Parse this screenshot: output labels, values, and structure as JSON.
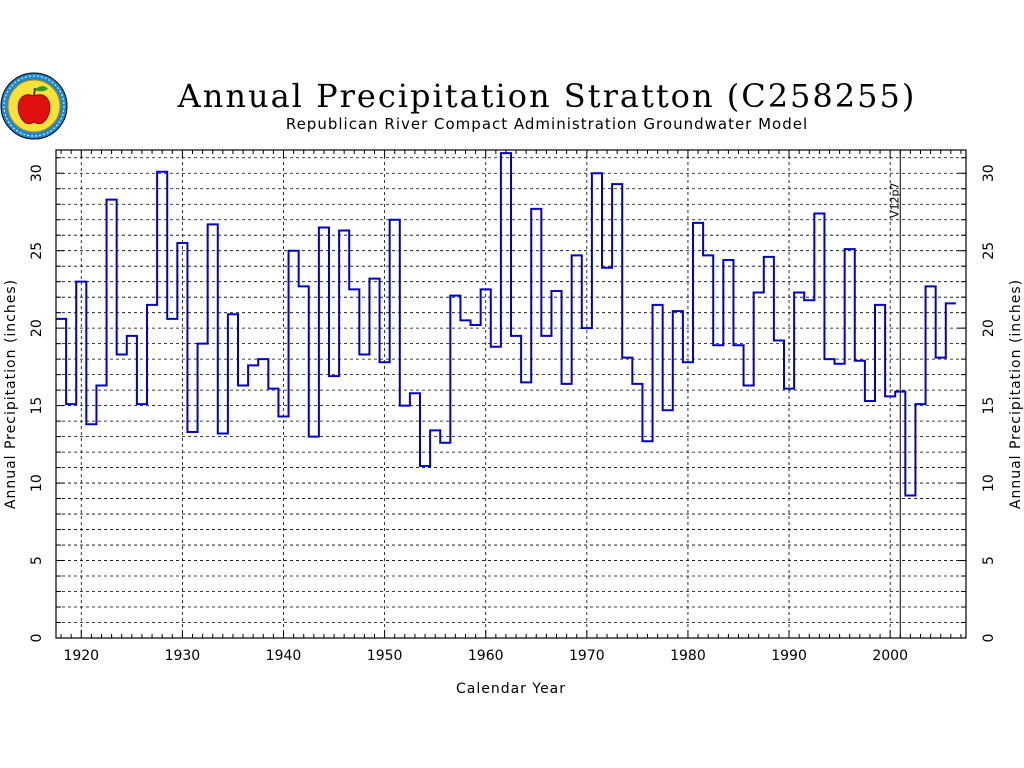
{
  "chart_data": {
    "type": "line",
    "step": true,
    "title": "Annual Precipitation Stratton (C258255)",
    "subtitle": "Republican River Compact Administration Groundwater Model",
    "xlabel": "Calendar Year",
    "ylabel_left": "Annual Precipitation (inches)",
    "ylabel_right": "Annual Precipitation (inches)",
    "xlim": [
      1917.5,
      2007.5
    ],
    "ylim": [
      0,
      31.5
    ],
    "x_ticks": [
      1920,
      1930,
      1940,
      1950,
      1960,
      1970,
      1980,
      1990,
      2000
    ],
    "y_ticks": [
      0,
      5,
      10,
      15,
      20,
      25,
      30
    ],
    "grid": true,
    "series": [
      {
        "color": "#0000c8",
        "x": [
          1918,
          1919,
          1920,
          1921,
          1922,
          1923,
          1924,
          1925,
          1926,
          1927,
          1928,
          1929,
          1930,
          1931,
          1932,
          1933,
          1934,
          1935,
          1936,
          1937,
          1938,
          1939,
          1940,
          1941,
          1942,
          1943,
          1944,
          1945,
          1946,
          1947,
          1948,
          1949,
          1950,
          1951,
          1952,
          1953,
          1954,
          1955,
          1956,
          1957,
          1958,
          1959,
          1960,
          1961,
          1962,
          1963,
          1964,
          1965,
          1966,
          1967,
          1968,
          1969,
          1970,
          1971,
          1972,
          1973,
          1974,
          1975,
          1976,
          1977,
          1978,
          1979,
          1980,
          1981,
          1982,
          1983,
          1984,
          1985,
          1986,
          1987,
          1988,
          1989,
          1990,
          1991,
          1992,
          1993,
          1994,
          1995,
          1996,
          1997,
          1998,
          1999,
          2000,
          2001,
          2002,
          2003,
          2004,
          2005,
          2006
        ],
        "values": [
          20.6,
          15.1,
          23.0,
          13.8,
          16.3,
          28.3,
          18.3,
          19.5,
          15.1,
          21.5,
          30.1,
          20.6,
          25.5,
          13.3,
          19.0,
          26.7,
          13.2,
          20.9,
          16.3,
          17.6,
          18.0,
          16.1,
          14.3,
          25.0,
          22.7,
          13.0,
          26.5,
          16.9,
          26.3,
          22.5,
          18.3,
          23.2,
          17.8,
          27.0,
          15.0,
          15.8,
          11.1,
          13.4,
          12.6,
          22.1,
          20.5,
          20.2,
          22.5,
          18.8,
          31.3,
          19.5,
          16.5,
          27.7,
          19.5,
          22.4,
          16.4,
          24.7,
          20.0,
          30.0,
          23.9,
          29.3,
          18.1,
          16.4,
          12.7,
          21.5,
          14.7,
          21.1,
          17.8,
          26.8,
          24.7,
          18.9,
          24.4,
          18.9,
          16.3,
          22.3,
          24.6,
          19.2,
          16.1,
          22.3,
          21.8,
          27.4,
          18.0,
          17.7,
          25.1,
          17.9,
          15.3,
          21.5,
          15.6,
          15.9,
          9.2,
          15.1,
          22.7,
          18.1,
          21.6
        ]
      }
    ],
    "annotations": [
      {
        "x": 2001,
        "label": "V12p7"
      }
    ]
  }
}
